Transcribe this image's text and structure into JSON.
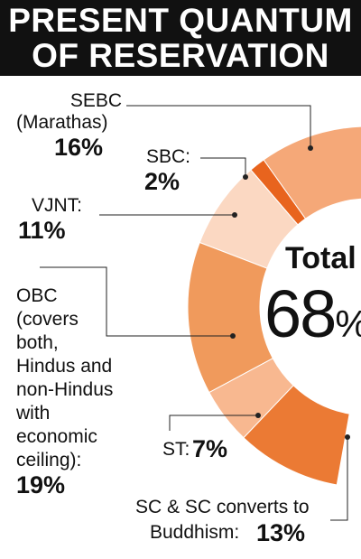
{
  "title": {
    "line1": "PRESENT QUANTUM",
    "line2": "OF RESERVATION"
  },
  "chart_data": {
    "type": "pie",
    "style": "donut",
    "center_label": "Total",
    "center_value": "68",
    "center_unit": "%",
    "slices": [
      {
        "name_lines": [
          "SEBC",
          "(Marathas)"
        ],
        "value": 16,
        "value_label": "16%",
        "color": "#f5a878"
      },
      {
        "name_lines": [
          "SBC:"
        ],
        "value": 2,
        "value_label": "2%",
        "color": "#e8641e"
      },
      {
        "name_lines": [
          "VJNT:"
        ],
        "value": 11,
        "value_label": "11%",
        "color": "#fbd8c2"
      },
      {
        "name_lines": [
          "OBC",
          "(covers",
          "both,",
          "Hindus and",
          "non-Hindus",
          "with",
          "economic",
          "ceiling):"
        ],
        "value": 19,
        "value_label": "19%",
        "color": "#f09a5c"
      },
      {
        "name_lines": [
          "ST:"
        ],
        "value": 7,
        "value_label": "7%",
        "color": "#f8b890"
      },
      {
        "name_lines": [
          "SC & SC converts to",
          "Buddhism:"
        ],
        "value": 13,
        "value_label": "13%",
        "color": "#eb7a34"
      }
    ],
    "total_value": 68
  }
}
